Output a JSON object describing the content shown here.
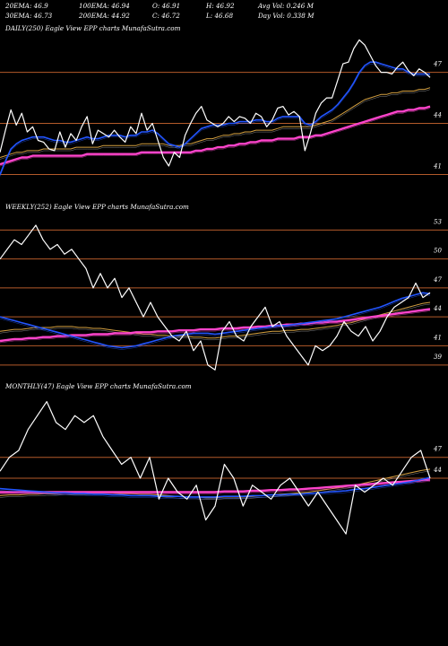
{
  "header": {
    "row1": [
      {
        "label": "20EMA: 46.9"
      },
      {
        "label": "100EMA: 46.94"
      },
      {
        "label": "O: 46.91"
      },
      {
        "label": "H: 46.92"
      },
      {
        "label": "Avg Vol: 0.246  M"
      }
    ],
    "row2": [
      {
        "label": "30EMA: 46.73"
      },
      {
        "label": "200EMA: 44.92"
      },
      {
        "label": "C: 46.72"
      },
      {
        "label": "L: 46.68"
      },
      {
        "label": "Day Vol: 0.338  M"
      }
    ]
  },
  "colors": {
    "background": "#000000",
    "price": "#ffffff",
    "ema_short": "#2255ff",
    "ema_long": "#ff44cc",
    "ema_mid": "#d4a040",
    "level_line": "#b35a2a"
  },
  "chart_data": [
    {
      "type": "line",
      "label": "DAILY(250) Eagle   View  EPP charts MunafaSutra.com",
      "ylim": [
        39.5,
        49.4
      ],
      "levels": [
        47,
        44,
        41
      ],
      "level_labels": [
        "47",
        "44",
        "41"
      ],
      "series": [
        {
          "role": "price",
          "values": [
            42.3,
            43.6,
            44.8,
            43.9,
            44.6,
            43.5,
            43.8,
            43.0,
            42.9,
            42.5,
            42.4,
            43.5,
            42.6,
            43.4,
            43.0,
            43.8,
            44.4,
            42.8,
            43.6,
            43.4,
            43.2,
            43.6,
            43.2,
            42.9,
            43.8,
            43.4,
            44.6,
            43.6,
            44.0,
            43.0,
            42.0,
            41.5,
            42.3,
            42.0,
            43.3,
            44.0,
            44.6,
            45.0,
            44.2,
            44.0,
            43.8,
            44.0,
            44.4,
            44.1,
            44.4,
            44.3,
            44.0,
            44.6,
            44.4,
            43.8,
            44.2,
            44.9,
            45.0,
            44.5,
            44.7,
            44.4,
            42.4,
            43.4,
            44.6,
            45.2,
            45.5,
            45.5,
            46.5,
            47.5,
            47.6,
            48.4,
            48.9,
            48.6,
            48.0,
            47.4,
            47.0,
            47.0,
            46.9,
            47.3,
            47.6,
            47.1,
            46.8,
            47.2,
            47.0,
            46.7
          ]
        },
        {
          "role": "ema_short",
          "values": [
            41.0,
            41.8,
            42.5,
            42.8,
            43.0,
            43.1,
            43.2,
            43.2,
            43.2,
            43.1,
            43.0,
            43.0,
            42.9,
            42.9,
            43.0,
            43.1,
            43.2,
            43.1,
            43.1,
            43.2,
            43.3,
            43.3,
            43.3,
            43.2,
            43.3,
            43.3,
            43.5,
            43.5,
            43.6,
            43.4,
            43.1,
            42.8,
            42.7,
            42.6,
            42.8,
            43.1,
            43.4,
            43.7,
            43.8,
            43.9,
            43.9,
            43.9,
            44.0,
            44.0,
            44.1,
            44.1,
            44.1,
            44.2,
            44.2,
            44.1,
            44.1,
            44.3,
            44.4,
            44.4,
            44.4,
            44.4,
            44.0,
            43.9,
            44.1,
            44.4,
            44.6,
            44.8,
            45.1,
            45.5,
            45.9,
            46.4,
            47.0,
            47.4,
            47.6,
            47.6,
            47.5,
            47.4,
            47.3,
            47.2,
            47.2,
            47.0,
            46.9,
            46.9,
            46.9,
            46.9
          ]
        },
        {
          "role": "ema_long",
          "values": [
            41.6,
            41.7,
            41.8,
            41.9,
            42.0,
            42.0,
            42.1,
            42.1,
            42.1,
            42.1,
            42.1,
            42.1,
            42.1,
            42.1,
            42.1,
            42.1,
            42.2,
            42.2,
            42.2,
            42.2,
            42.2,
            42.2,
            42.2,
            42.2,
            42.2,
            42.2,
            42.3,
            42.3,
            42.3,
            42.3,
            42.3,
            42.3,
            42.3,
            42.3,
            42.3,
            42.3,
            42.4,
            42.4,
            42.5,
            42.5,
            42.6,
            42.6,
            42.7,
            42.7,
            42.8,
            42.8,
            42.9,
            42.9,
            43.0,
            43.0,
            43.0,
            43.1,
            43.1,
            43.1,
            43.1,
            43.2,
            43.2,
            43.2,
            43.3,
            43.3,
            43.4,
            43.5,
            43.6,
            43.7,
            43.8,
            43.9,
            44.0,
            44.1,
            44.2,
            44.3,
            44.4,
            44.5,
            44.6,
            44.7,
            44.7,
            44.8,
            44.8,
            44.9,
            44.9,
            45.0
          ]
        },
        {
          "role": "ema_mid",
          "values": [
            42.0,
            42.1,
            42.2,
            42.3,
            42.3,
            42.4,
            42.4,
            42.4,
            42.5,
            42.5,
            42.5,
            42.5,
            42.5,
            42.5,
            42.6,
            42.6,
            42.6,
            42.6,
            42.6,
            42.7,
            42.7,
            42.7,
            42.7,
            42.7,
            42.7,
            42.7,
            42.8,
            42.8,
            42.8,
            42.8,
            42.8,
            42.7,
            42.7,
            42.7,
            42.8,
            42.8,
            42.9,
            43.0,
            43.1,
            43.1,
            43.2,
            43.3,
            43.3,
            43.4,
            43.4,
            43.5,
            43.5,
            43.6,
            43.6,
            43.6,
            43.6,
            43.7,
            43.8,
            43.8,
            43.8,
            43.8,
            43.8,
            43.8,
            43.9,
            44.0,
            44.1,
            44.2,
            44.4,
            44.6,
            44.8,
            45.0,
            45.2,
            45.4,
            45.5,
            45.6,
            45.7,
            45.7,
            45.8,
            45.8,
            45.9,
            45.9,
            45.9,
            46.0,
            46.0,
            46.1
          ]
        }
      ]
    },
    {
      "type": "line",
      "label": "WEEKLY(252) Eagle   View  EPP charts MunafaSutra.com",
      "ylim": [
        37.5,
        54.9
      ],
      "levels": [
        53,
        50,
        47,
        44,
        41,
        39
      ],
      "level_labels": [
        "53",
        "50",
        "47",
        "44",
        "41",
        "39"
      ],
      "series": [
        {
          "role": "price",
          "values": [
            50.0,
            51.0,
            52.0,
            51.5,
            52.5,
            53.5,
            52.0,
            51.0,
            51.5,
            50.5,
            51.0,
            50.0,
            49.0,
            47.0,
            48.5,
            47.0,
            48.0,
            46.0,
            47.0,
            45.5,
            44.0,
            45.5,
            44.0,
            43.0,
            42.0,
            41.5,
            42.5,
            40.5,
            41.5,
            39.0,
            38.5,
            42.5,
            43.5,
            42.0,
            41.5,
            43.0,
            44.0,
            45.0,
            43.0,
            43.5,
            42.0,
            41.0,
            40.0,
            39.0,
            41.0,
            40.5,
            41.0,
            42.0,
            43.5,
            42.5,
            42.0,
            43.0,
            41.5,
            42.5,
            44.0,
            45.0,
            45.5,
            46.0,
            47.5,
            46.0,
            46.5
          ]
        },
        {
          "role": "ema_short",
          "values": [
            44.0,
            43.8,
            43.6,
            43.4,
            43.2,
            43.0,
            42.8,
            42.6,
            42.4,
            42.2,
            42.0,
            41.8,
            41.6,
            41.4,
            41.2,
            41.0,
            40.9,
            40.8,
            40.9,
            41.0,
            41.2,
            41.4,
            41.6,
            41.8,
            42.0,
            42.1,
            42.2,
            42.3,
            42.3,
            42.3,
            42.2,
            42.3,
            42.4,
            42.5,
            42.6,
            42.7,
            42.8,
            42.9,
            43.0,
            43.1,
            43.1,
            43.2,
            43.3,
            43.4,
            43.5,
            43.6,
            43.7,
            43.8,
            44.0,
            44.2,
            44.4,
            44.6,
            44.8,
            45.0,
            45.3,
            45.6,
            45.9,
            46.1,
            46.3,
            46.5,
            46.4
          ]
        },
        {
          "role": "ema_long",
          "values": [
            41.5,
            41.6,
            41.7,
            41.7,
            41.8,
            41.8,
            41.9,
            41.9,
            42.0,
            42.0,
            42.1,
            42.1,
            42.1,
            42.2,
            42.2,
            42.2,
            42.3,
            42.3,
            42.3,
            42.4,
            42.4,
            42.4,
            42.5,
            42.5,
            42.5,
            42.6,
            42.6,
            42.6,
            42.7,
            42.7,
            42.7,
            42.8,
            42.8,
            42.8,
            42.9,
            42.9,
            43.0,
            43.0,
            43.1,
            43.1,
            43.2,
            43.2,
            43.3,
            43.3,
            43.4,
            43.4,
            43.5,
            43.5,
            43.6,
            43.7,
            43.8,
            43.9,
            44.0,
            44.1,
            44.2,
            44.3,
            44.4,
            44.5,
            44.6,
            44.7,
            44.8
          ]
        },
        {
          "role": "ema_mid",
          "values": [
            42.5,
            42.6,
            42.7,
            42.7,
            42.8,
            42.9,
            42.9,
            42.9,
            43.0,
            43.0,
            43.0,
            42.9,
            42.9,
            42.8,
            42.8,
            42.7,
            42.6,
            42.5,
            42.4,
            42.3,
            42.2,
            42.2,
            42.1,
            42.1,
            42.0,
            42.0,
            42.0,
            41.9,
            41.9,
            41.8,
            41.8,
            41.9,
            42.0,
            42.0,
            42.1,
            42.2,
            42.3,
            42.4,
            42.5,
            42.5,
            42.6,
            42.6,
            42.7,
            42.7,
            42.8,
            42.9,
            43.0,
            43.1,
            43.3,
            43.4,
            43.6,
            43.8,
            44.0,
            44.2,
            44.4,
            44.6,
            44.8,
            45.0,
            45.2,
            45.4,
            45.5
          ]
        }
      ]
    },
    {
      "type": "line",
      "label": "MONTHLY(47) Eagle   View  EPP charts MunafaSutra.com",
      "ylim": [
        32.4,
        56.5
      ],
      "levels": [
        47,
        44
      ],
      "level_labels": [
        "47",
        "44"
      ],
      "series": [
        {
          "role": "price",
          "values": [
            45.0,
            47.0,
            48.0,
            51.0,
            53.0,
            55.0,
            52.0,
            51.0,
            53.0,
            52.0,
            53.0,
            50.0,
            48.0,
            46.0,
            47.0,
            44.0,
            47.0,
            41.0,
            44.0,
            42.0,
            41.0,
            43.0,
            38.0,
            40.0,
            46.0,
            44.0,
            40.0,
            43.0,
            42.0,
            41.0,
            43.0,
            44.0,
            42.0,
            40.0,
            42.0,
            40.0,
            38.0,
            36.0,
            43.0,
            42.0,
            43.0,
            44.0,
            43.0,
            45.0,
            47.0,
            48.0,
            44.0
          ]
        },
        {
          "role": "ema_short",
          "values": [
            42.5,
            42.4,
            42.3,
            42.2,
            42.1,
            42.0,
            41.9,
            41.9,
            41.8,
            41.8,
            41.7,
            41.7,
            41.6,
            41.6,
            41.5,
            41.5,
            41.5,
            41.4,
            41.4,
            41.4,
            41.3,
            41.3,
            41.3,
            41.3,
            41.4,
            41.4,
            41.4,
            41.5,
            41.5,
            41.6,
            41.6,
            41.7,
            41.7,
            41.8,
            41.9,
            42.0,
            42.1,
            42.2,
            42.4,
            42.5,
            42.7,
            42.9,
            43.1,
            43.3,
            43.5,
            43.8,
            44.1
          ]
        },
        {
          "role": "ema_long",
          "values": [
            42.0,
            42.0,
            42.0,
            42.0,
            42.0,
            42.0,
            42.0,
            42.0,
            42.0,
            42.0,
            42.0,
            42.0,
            42.0,
            42.0,
            42.0,
            42.0,
            42.0,
            42.0,
            42.0,
            42.0,
            42.0,
            42.0,
            42.0,
            42.0,
            42.1,
            42.1,
            42.1,
            42.2,
            42.2,
            42.3,
            42.3,
            42.4,
            42.4,
            42.5,
            42.6,
            42.7,
            42.8,
            42.9,
            43.0,
            43.1,
            43.2,
            43.3,
            43.4,
            43.5,
            43.6,
            43.7,
            43.8
          ]
        },
        {
          "role": "ema_mid",
          "values": [
            41.5,
            41.6,
            41.6,
            41.7,
            41.7,
            41.8,
            41.8,
            41.9,
            41.9,
            41.9,
            41.9,
            41.9,
            41.9,
            41.8,
            41.8,
            41.7,
            41.7,
            41.6,
            41.5,
            41.4,
            41.3,
            41.3,
            41.2,
            41.2,
            41.3,
            41.3,
            41.3,
            41.4,
            41.5,
            41.6,
            41.7,
            41.8,
            41.9,
            42.0,
            42.2,
            42.4,
            42.6,
            42.8,
            43.0,
            43.3,
            43.6,
            43.9,
            44.2,
            44.5,
            44.8,
            45.1,
            45.3
          ]
        }
      ]
    }
  ]
}
